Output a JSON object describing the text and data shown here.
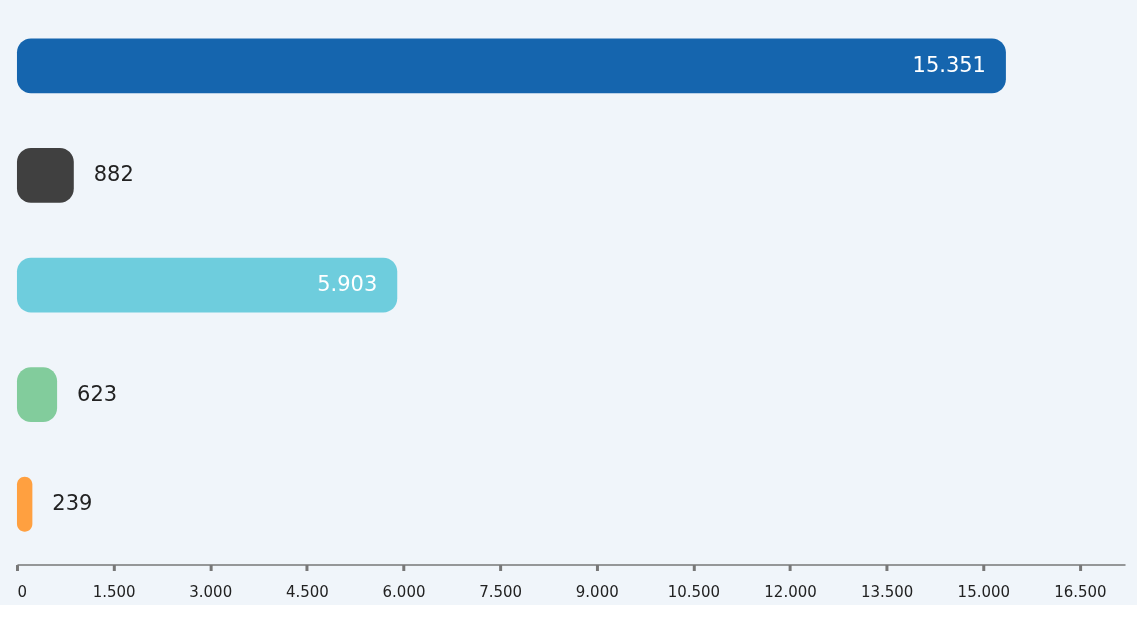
{
  "chart_data": {
    "type": "bar",
    "orientation": "horizontal",
    "categories": [
      null,
      null,
      null,
      null,
      null
    ],
    "values": [
      15351,
      882,
      5903,
      623,
      239
    ],
    "colors": [
      "#1565ae",
      "#404040",
      "#6ecddd",
      "#82cc9c",
      "#ffa040"
    ],
    "value_labels": [
      "15.351",
      "882",
      "5.903",
      "623",
      "239"
    ],
    "xlim": [
      0,
      17200
    ],
    "xticks": [
      0,
      {
        "value": 1500,
        "label": "1.500"
      },
      {
        "value": 3000,
        "label": "3.000"
      },
      {
        "value": 4500,
        "label": "4.500"
      },
      {
        "value": 6000,
        "label": "6.000"
      },
      {
        "value": 7500,
        "label": "7.500"
      },
      {
        "value": 9000,
        "label": "9.000"
      },
      {
        "value": 10500,
        "label": "10.500"
      },
      {
        "value": 12000,
        "label": "12.000"
      },
      {
        "value": 13500,
        "label": "13.500"
      },
      {
        "value": 15000,
        "label": "15.000"
      },
      {
        "value": 16500,
        "label": "16.500"
      }
    ],
    "tick_labels": "x",
    "grid": false
  }
}
